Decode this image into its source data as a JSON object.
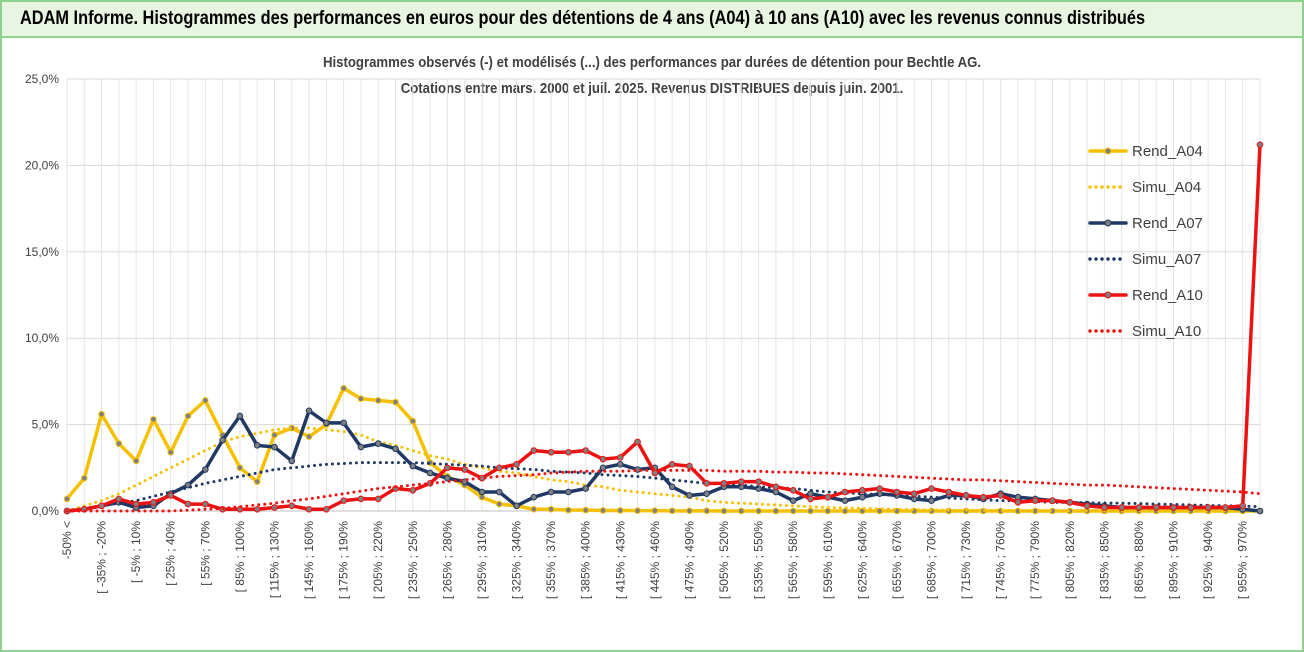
{
  "header": {
    "title": "ADAM Informe. Histogrammes des performances en euros pour des détentions de 4 ans (A04) à 10 ans (A10) avec les revenus connus distribués"
  },
  "chart_data": {
    "type": "line",
    "title": "Histogrammes observés (-) et modélisés (...) des performances par durées de détention pour Bechtle AG.",
    "subtitle": "Cotations entre mars. 2000 et juil. 2025. Revenus DISTRIBUES depuis juin. 2001.",
    "categories": [
      "-50% <",
      null,
      "[ -35% ; -20%",
      null,
      "[ -5% ; 10%",
      null,
      "[ 25% ; 40%",
      null,
      "[ 55% ; 70%",
      null,
      "[ 85% ; 100%",
      null,
      "[ 115% ; 130%",
      null,
      "[ 145% ; 160%",
      null,
      "[ 175% ; 190%",
      null,
      "[ 205% ; 220%",
      null,
      "[ 235% ; 250%",
      null,
      "[ 265% ; 280%",
      null,
      "[ 295% ; 310%",
      null,
      "[ 325% ; 340%",
      null,
      "[ 355% ; 370%",
      null,
      "[ 385% ; 400%",
      null,
      "[ 415% ; 430%",
      null,
      "[ 445% ; 460%",
      null,
      "[ 475% ; 490%",
      null,
      "[ 505% ; 520%",
      null,
      "[ 535% ; 550%",
      null,
      "[ 565% ; 580%",
      null,
      "[ 595% ; 610%",
      null,
      "[ 625% ; 640%",
      null,
      "[ 655% ; 670%",
      null,
      "[ 685% ; 700%",
      null,
      "[ 715% ; 730%",
      null,
      "[ 745% ; 760%",
      null,
      "[ 775% ; 790%",
      null,
      "[ 805% ; 820%",
      null,
      "[ 835% ; 850%",
      null,
      "[ 865% ; 880%",
      null,
      "[ 895% ; 910%",
      null,
      "[ 925% ; 940%",
      null,
      "[ 955% ; 970%",
      null
    ],
    "series": [
      {
        "name": "Rend_A04",
        "color": "#f5c000",
        "line_style": "solid",
        "markers": true,
        "values": [
          0.7,
          1.9,
          5.6,
          3.9,
          2.9,
          5.3,
          3.4,
          5.5,
          6.4,
          4.4,
          2.5,
          1.7,
          4.4,
          4.8,
          4.3,
          5.0,
          7.1,
          6.5,
          6.4,
          6.3,
          5.2,
          2.8,
          2.0,
          1.5,
          0.8,
          0.4,
          0.3,
          0.1,
          0.1,
          0.05,
          0.05,
          0.03,
          0.03,
          0.02,
          0.02,
          0.01,
          0.01,
          0.01,
          0,
          0,
          0,
          0,
          0,
          0,
          0,
          0,
          0,
          0,
          0,
          0,
          0,
          0,
          0,
          0,
          0,
          0,
          0,
          0,
          0,
          0,
          0,
          0,
          0,
          0,
          0,
          0,
          0,
          0,
          0,
          0
        ]
      },
      {
        "name": "Simu_A04",
        "color": "#f5c000",
        "line_style": "dotted",
        "markers": false,
        "values": [
          0,
          0.3,
          0.6,
          1.0,
          1.5,
          2.0,
          2.5,
          3.0,
          3.5,
          4.0,
          4.3,
          4.5,
          4.7,
          4.8,
          4.8,
          4.7,
          4.6,
          4.4,
          4.0,
          3.8,
          3.5,
          3.2,
          3.0,
          2.7,
          2.5,
          2.3,
          2.2,
          2.0,
          1.8,
          1.7,
          1.5,
          1.4,
          1.2,
          1.1,
          1.0,
          0.9,
          0.8,
          0.6,
          0.5,
          0.45,
          0.4,
          0.35,
          0.3,
          0.25,
          0.2,
          0.18,
          0.15,
          0.12,
          0.1,
          0.08,
          0.06,
          0.05,
          0.04,
          0.03,
          0.03,
          0.02,
          0.02,
          0.01,
          0.01,
          0.01,
          0,
          0,
          0,
          0,
          0,
          0,
          0,
          0,
          0,
          0
        ]
      },
      {
        "name": "Rend_A07",
        "color": "#1f3864",
        "line_style": "solid",
        "markers": true,
        "values": [
          0,
          0.1,
          0.3,
          0.5,
          0.2,
          0.3,
          1.0,
          1.5,
          2.4,
          4.1,
          5.5,
          3.8,
          3.7,
          2.9,
          5.8,
          5.1,
          5.1,
          3.7,
          3.9,
          3.6,
          2.6,
          2.2,
          1.9,
          1.7,
          1.1,
          1.1,
          0.3,
          0.8,
          1.1,
          1.1,
          1.3,
          2.5,
          2.7,
          2.4,
          2.5,
          1.4,
          0.9,
          1.0,
          1.4,
          1.4,
          1.3,
          1.1,
          0.6,
          1.0,
          0.8,
          0.6,
          0.8,
          1.0,
          0.9,
          0.7,
          0.6,
          0.9,
          0.9,
          0.7,
          1.0,
          0.8,
          0.7,
          0.6,
          0.5,
          0.4,
          0.3,
          0.2,
          0.2,
          0.2,
          0.2,
          0.2,
          0.2,
          0.2,
          0.1,
          0
        ]
      },
      {
        "name": "Simu_A07",
        "color": "#1f3864",
        "line_style": "dotted",
        "markers": false,
        "values": [
          0,
          0.15,
          0.3,
          0.45,
          0.6,
          0.85,
          1.1,
          1.35,
          1.6,
          1.8,
          2.0,
          2.2,
          2.4,
          2.5,
          2.6,
          2.7,
          2.75,
          2.8,
          2.8,
          2.8,
          2.8,
          2.75,
          2.7,
          2.65,
          2.6,
          2.5,
          2.45,
          2.4,
          2.3,
          2.25,
          2.2,
          2.1,
          2.05,
          2.0,
          1.9,
          1.8,
          1.7,
          1.6,
          1.55,
          1.5,
          1.4,
          1.35,
          1.3,
          1.2,
          1.1,
          1.05,
          1.0,
          0.95,
          0.9,
          0.85,
          0.8,
          0.75,
          0.7,
          0.65,
          0.6,
          0.6,
          0.55,
          0.5,
          0.5,
          0.48,
          0.46,
          0.45,
          0.43,
          0.4,
          0.38,
          0.35,
          0.32,
          0.3,
          0.28,
          0.25
        ]
      },
      {
        "name": "Rend_A10",
        "color": "#ee1111",
        "line_style": "solid",
        "markers": true,
        "values": [
          0,
          0.1,
          0.3,
          0.7,
          0.4,
          0.5,
          0.9,
          0.4,
          0.4,
          0.1,
          0.1,
          0.1,
          0.2,
          0.3,
          0.1,
          0.1,
          0.6,
          0.7,
          0.7,
          1.3,
          1.2,
          1.6,
          2.5,
          2.4,
          1.9,
          2.5,
          2.7,
          3.5,
          3.4,
          3.4,
          3.5,
          3.0,
          3.1,
          4.0,
          2.2,
          2.7,
          2.6,
          1.6,
          1.6,
          1.7,
          1.7,
          1.4,
          1.2,
          0.7,
          0.8,
          1.1,
          1.2,
          1.3,
          1.1,
          1.0,
          1.3,
          1.1,
          0.9,
          0.8,
          0.9,
          0.5,
          0.6,
          0.6,
          0.5,
          0.3,
          0.2,
          0.2,
          0.2,
          0.2,
          0.2,
          0.2,
          0.2,
          0.2,
          0.3,
          21.2
        ]
      },
      {
        "name": "Simu_A10",
        "color": "#ee1111",
        "line_style": "dotted",
        "markers": false,
        "values": [
          0,
          0,
          0,
          0,
          0,
          0,
          0,
          0.05,
          0.1,
          0.15,
          0.25,
          0.35,
          0.45,
          0.6,
          0.7,
          0.85,
          1.0,
          1.15,
          1.3,
          1.4,
          1.5,
          1.6,
          1.7,
          1.8,
          1.9,
          2.0,
          2.05,
          2.1,
          2.2,
          2.25,
          2.3,
          2.3,
          2.3,
          2.35,
          2.35,
          2.35,
          2.35,
          2.35,
          2.3,
          2.3,
          2.3,
          2.25,
          2.25,
          2.2,
          2.2,
          2.15,
          2.1,
          2.05,
          2.0,
          1.95,
          1.9,
          1.85,
          1.8,
          1.8,
          1.75,
          1.7,
          1.65,
          1.6,
          1.55,
          1.5,
          1.5,
          1.45,
          1.4,
          1.35,
          1.3,
          1.25,
          1.2,
          1.15,
          1.1,
          1.0
        ]
      }
    ],
    "ylim": [
      0,
      25
    ],
    "yticks": [
      {
        "value": 0,
        "label": "0,0%"
      },
      {
        "value": 5,
        "label": "5,0%"
      },
      {
        "value": 10,
        "label": "10,0%"
      },
      {
        "value": 15,
        "label": "15,0%"
      },
      {
        "value": 20,
        "label": "20,0%"
      },
      {
        "value": 25,
        "label": "25,0%"
      }
    ],
    "grid": true,
    "legend": "right"
  }
}
